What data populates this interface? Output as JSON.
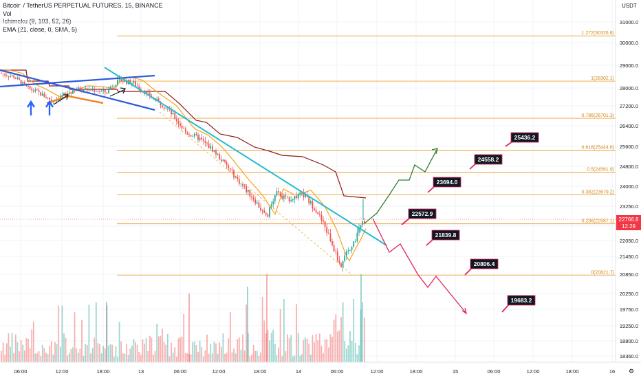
{
  "header": {
    "title": "Bitcoin / TetherUS PERPETUAL FUTURES, 15, BINANCE",
    "indicators": [
      "Vol",
      "Ichimoku (9, 103, 52, 26)",
      "EMA (21, close, 0, SMA, 5)"
    ]
  },
  "price_axis": {
    "unit": "USDT",
    "last_price": "22766.8",
    "countdown": "12:29",
    "last_color": "#f23645",
    "ticks": [
      "31000.0",
      "30000.0",
      "29000.0",
      "28000.0",
      "27200.0",
      "26400.0",
      "25600.0",
      "24800.0",
      "24000.0",
      "23250.0",
      "22500.0",
      "22050.0",
      "21450.0",
      "20850.0",
      "20250.0",
      "19750.0",
      "19250.0",
      "18800.0",
      "18360.0"
    ]
  },
  "time_axis": {
    "labels": [
      "06:00",
      "12:00",
      "18:00",
      "13",
      "06:00",
      "12:00",
      "18:00",
      "14",
      "06:00",
      "12:00",
      "18:00",
      "15",
      "06:00",
      "12:00",
      "18:00",
      "16"
    ]
  },
  "chart_data": {
    "type": "candlestick",
    "symbol": "Bitcoin / TetherUS PERPETUAL FUTURES",
    "interval": "15",
    "exchange": "BINANCE",
    "fib_levels": [
      {
        "ratio": "1.272",
        "label": "1.272(30326.8)",
        "price": 30326.8
      },
      {
        "ratio": "1",
        "label": "1(28302.1)",
        "price": 28302.1
      },
      {
        "ratio": "0.786",
        "label": "0.786(26701.3)",
        "price": 26701.3
      },
      {
        "ratio": "0.618",
        "label": "0.618(25444.6)",
        "price": 25444.6
      },
      {
        "ratio": "0.5",
        "label": "0.5(24561.9)",
        "price": 24561.9
      },
      {
        "ratio": "0.382",
        "label": "0.382(23679.2)",
        "price": 23679.2
      },
      {
        "ratio": "0.236",
        "label": "0.236(22587.1)",
        "price": 22587.1
      },
      {
        "ratio": "0",
        "label": "0(20821.7)",
        "price": 20821.7
      }
    ],
    "projection_labels": {
      "bullish": [
        "22572.9",
        "23694.0",
        "24558.2",
        "25436.2"
      ],
      "bearish": [
        "21839.8",
        "20806.4",
        "19683.2"
      ]
    },
    "colors": {
      "up": "#26a69a",
      "down": "#ef5350",
      "fib": "#f0a030",
      "ema": "#f7a21b",
      "cloud": "#8b1a1a",
      "trend_blue": "#2e5bd8",
      "trend_cyan": "#22bcd0",
      "bull_path": "#2e7d32",
      "bear_path": "#e0245e"
    }
  }
}
